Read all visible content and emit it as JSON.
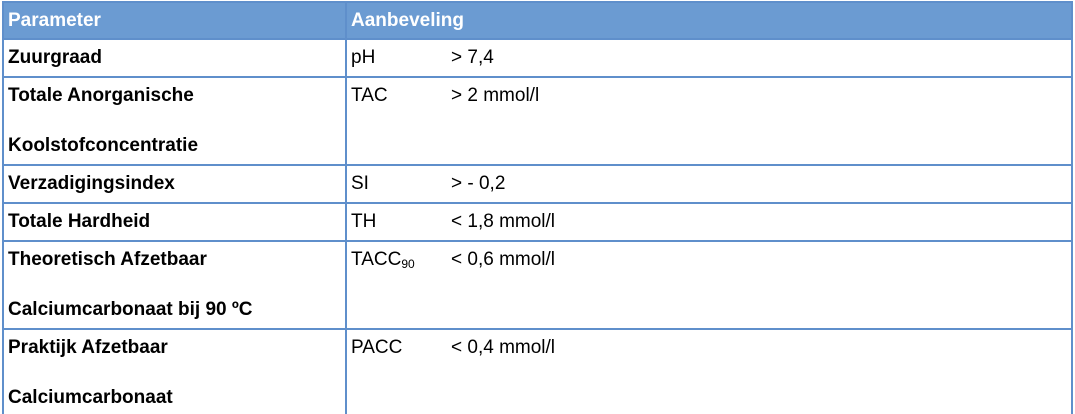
{
  "table": {
    "header": [
      "Parameter",
      "Aanbeveling"
    ],
    "rows": [
      {
        "parameter": [
          "Zuurgraad"
        ],
        "code": "pH",
        "value": "> 7,4"
      },
      {
        "parameter": [
          "Totale Anorganische",
          "Koolstofconcentratie"
        ],
        "code": "TAC",
        "value": "> 2 mmol/l"
      },
      {
        "parameter": [
          "Verzadigingsindex"
        ],
        "code": "SI",
        "value": "> - 0,2"
      },
      {
        "parameter": [
          "Totale Hardheid"
        ],
        "code": "TH",
        "value": "< 1,8 mmol/l"
      },
      {
        "parameter": [
          "Theoretisch Afzetbaar",
          "Calciumcarbonaat bij 90 ºC"
        ],
        "code": "TACC",
        "code_subscript": "90",
        "value": "< 0,6 mmol/l"
      },
      {
        "parameter": [
          "Praktijk Afzetbaar",
          "Calciumcarbonaat"
        ],
        "code": "PACC",
        "value": "< 0,4 mmol/l"
      }
    ]
  }
}
